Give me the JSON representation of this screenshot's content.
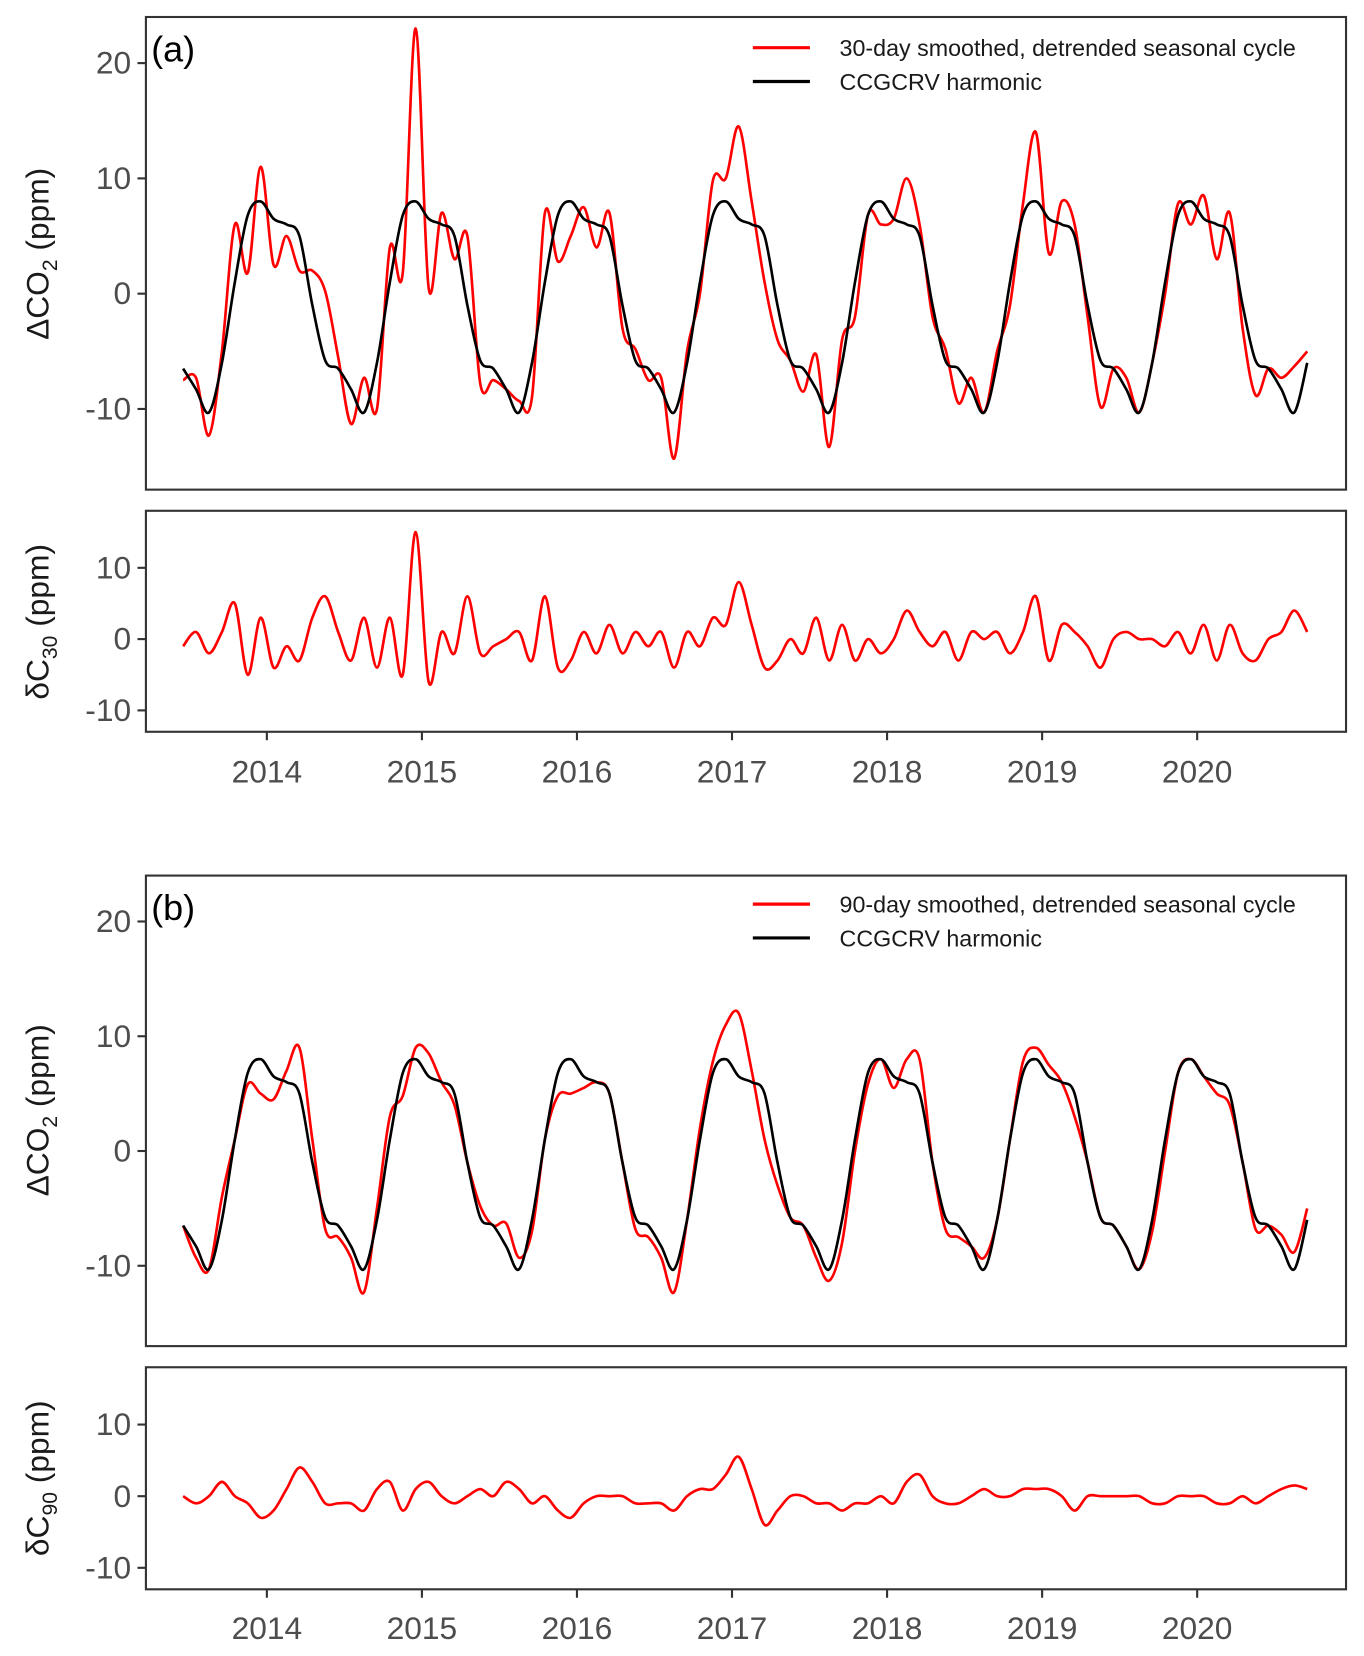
{
  "chart_data": [
    {
      "type": "line",
      "panel_label": "(a)",
      "x_start": 2013.46,
      "x_step_years": 0.08333,
      "xlim": [
        2013.22,
        2020.96
      ],
      "x_ticks": [
        "2014",
        "2015",
        "2016",
        "2017",
        "2018",
        "2019",
        "2020"
      ],
      "x_tick_values": [
        2014,
        2015,
        2016,
        2017,
        2018,
        2019,
        2020
      ],
      "top": {
        "ylabel": {
          "pre": "ΔCO",
          "sub": "2",
          "post": " (ppm)"
        },
        "ylim": [
          -17,
          24
        ],
        "y_ticks": [
          "-10",
          "0",
          "10",
          "20"
        ],
        "y_tick_values": [
          -10,
          0,
          10,
          20
        ],
        "legend": [
          "30-day smoothed, detrended seasonal cycle",
          "CCGCRV harmonic"
        ],
        "legend_position": "top-right",
        "series_note": "smoothed = harmonic + residual"
      },
      "bottom": {
        "ylabel": {
          "pre": "δC",
          "sub": "30",
          "post": " (ppm)"
        },
        "ylim": [
          -13,
          18
        ],
        "y_ticks": [
          "-10",
          "0",
          "10"
        ],
        "y_tick_values": [
          -10,
          0,
          10
        ]
      },
      "colors": {
        "smoothed": "#ff0000",
        "harmonic": "#000000"
      },
      "harmonic": [
        -6.5,
        -8.3,
        -10.3,
        -6,
        1,
        6.8,
        8,
        6.5,
        6,
        5,
        -1,
        -5.8,
        -6.5,
        -8.3,
        -10.3,
        -6,
        1,
        6.8,
        8,
        6.5,
        6,
        5,
        -1,
        -5.8,
        -6.5,
        -8.3,
        -10.3,
        -6,
        1,
        6.8,
        8,
        6.5,
        6,
        5,
        -1,
        -5.8,
        -6.5,
        -8.3,
        -10.3,
        -6,
        1,
        6.8,
        8,
        6.5,
        6,
        5,
        -1,
        -5.8,
        -6.5,
        -8.3,
        -10.3,
        -6,
        1,
        6.8,
        8,
        6.5,
        6,
        5,
        -1,
        -5.8,
        -6.5,
        -8.3,
        -10.3,
        -6,
        1,
        6.8,
        8,
        6.5,
        6,
        5,
        -1,
        -5.8,
        -6.5,
        -8.3,
        -10.3,
        -6,
        1,
        6.8,
        8,
        6.5,
        6,
        5,
        -1,
        -5.8,
        -6.5,
        -8.3,
        -10.3,
        -6
      ],
      "residual": [
        -1,
        1,
        -2,
        1,
        5,
        -5,
        3,
        -4,
        -1,
        -3,
        3,
        6,
        1,
        -3,
        3,
        -4,
        3,
        -5,
        15,
        -6,
        1,
        -2,
        6,
        -2,
        -1,
        0,
        1,
        -3,
        6,
        -4,
        -3,
        1,
        -2,
        2,
        -2,
        1,
        -1,
        1,
        -4,
        1,
        -1,
        3,
        2,
        8,
        2,
        -4,
        -3,
        0,
        -2,
        3,
        -3,
        2,
        -3,
        0,
        -2,
        0,
        4,
        1,
        -1,
        1,
        -3,
        1,
        0,
        1,
        -2,
        1,
        6,
        -3,
        2,
        1,
        -1,
        -4,
        0,
        1,
        0,
        0,
        -1,
        1,
        -2,
        2,
        -3,
        2,
        -2,
        -3,
        0,
        1,
        4,
        1
      ]
    },
    {
      "type": "line",
      "panel_label": "(b)",
      "x_start": 2013.46,
      "x_step_years": 0.08333,
      "xlim": [
        2013.22,
        2020.96
      ],
      "x_ticks": [
        "2014",
        "2015",
        "2016",
        "2017",
        "2018",
        "2019",
        "2020"
      ],
      "x_tick_values": [
        2014,
        2015,
        2016,
        2017,
        2018,
        2019,
        2020
      ],
      "top": {
        "ylabel": {
          "pre": "ΔCO",
          "sub": "2",
          "post": " (ppm)"
        },
        "ylim": [
          -17,
          24
        ],
        "y_ticks": [
          "-10",
          "0",
          "10",
          "20"
        ],
        "y_tick_values": [
          -10,
          0,
          10,
          20
        ],
        "legend": [
          "90-day smoothed, detrended seasonal cycle",
          "CCGCRV harmonic"
        ],
        "legend_position": "top-right",
        "series_note": "smoothed = harmonic + residual"
      },
      "bottom": {
        "ylabel": {
          "pre": "δC",
          "sub": "90",
          "post": " (ppm)"
        },
        "ylim": [
          -13,
          18
        ],
        "y_ticks": [
          "-10",
          "0",
          "10"
        ],
        "y_tick_values": [
          -10,
          0,
          10
        ]
      },
      "colors": {
        "smoothed": "#ff0000",
        "harmonic": "#000000"
      },
      "harmonic": [
        -6.5,
        -8.3,
        -10.3,
        -6,
        1,
        6.8,
        8,
        6.5,
        6,
        5,
        -1,
        -5.8,
        -6.5,
        -8.3,
        -10.3,
        -6,
        1,
        6.8,
        8,
        6.5,
        6,
        5,
        -1,
        -5.8,
        -6.5,
        -8.3,
        -10.3,
        -6,
        1,
        6.8,
        8,
        6.5,
        6,
        5,
        -1,
        -5.8,
        -6.5,
        -8.3,
        -10.3,
        -6,
        1,
        6.8,
        8,
        6.5,
        6,
        5,
        -1,
        -5.8,
        -6.5,
        -8.3,
        -10.3,
        -6,
        1,
        6.8,
        8,
        6.5,
        6,
        5,
        -1,
        -5.8,
        -6.5,
        -8.3,
        -10.3,
        -6,
        1,
        6.8,
        8,
        6.5,
        6,
        5,
        -1,
        -5.8,
        -6.5,
        -8.3,
        -10.3,
        -6,
        1,
        6.8,
        8,
        6.5,
        6,
        5,
        -1,
        -5.8,
        -6.5,
        -8.3,
        -10.3,
        -6
      ],
      "residual": [
        0,
        -1,
        0,
        2,
        0,
        -1,
        -3,
        -2,
        1,
        4,
        2,
        -1,
        -1,
        -1,
        -2,
        1,
        2,
        -2,
        1,
        2,
        0,
        -1,
        0,
        1,
        0,
        2,
        1,
        -1,
        0,
        -2,
        -3,
        -1,
        0,
        0,
        0,
        -1,
        -1,
        -1,
        -2,
        0,
        1,
        1,
        3,
        5.5,
        1,
        -4,
        -2,
        0,
        0,
        -1,
        -1,
        -2,
        -1,
        -1,
        0,
        -1,
        2,
        3,
        0,
        -1,
        -1,
        0,
        1,
        0,
        0,
        1,
        1,
        1,
        0,
        -2,
        0,
        0,
        0,
        0,
        0,
        -1,
        -1,
        0,
        0,
        0,
        -1,
        -1,
        0,
        -1,
        0,
        1,
        1.5,
        1
      ]
    }
  ]
}
